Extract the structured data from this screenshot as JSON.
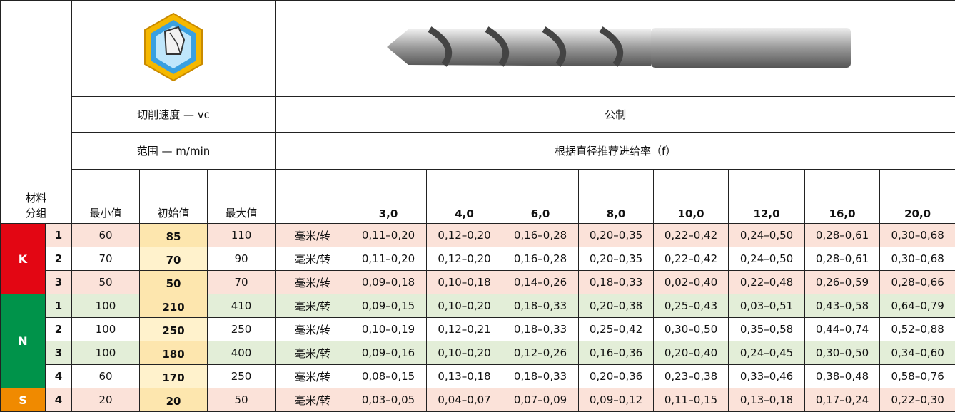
{
  "header": {
    "material_group": [
      "材料",
      "分组"
    ],
    "cutting_speed": "切削速度 — vc",
    "range": "范围 — m/min",
    "metric": "公制",
    "feed_note": "根据直径推荐进给率（f）",
    "min": "最小值",
    "start": "初始值",
    "max": "最大值",
    "diameters": [
      "3,0",
      "4,0",
      "6,0",
      "8,0",
      "10,0",
      "12,0",
      "16,0",
      "20,0"
    ]
  },
  "groups": [
    {
      "code": "K",
      "rows": [
        {
          "sub": "1",
          "min": 60,
          "start": 85,
          "max": 110,
          "unit": "毫米/转",
          "feeds": [
            "0,11–0,20",
            "0,12–0,20",
            "0,16–0,28",
            "0,20–0,35",
            "0,22–0,42",
            "0,24–0,50",
            "0,28–0,61",
            "0,30–0,68"
          ]
        },
        {
          "sub": "2",
          "min": 70,
          "start": 70,
          "max": 90,
          "unit": "毫米/转",
          "feeds": [
            "0,11–0,20",
            "0,12–0,20",
            "0,16–0,28",
            "0,20–0,35",
            "0,22–0,42",
            "0,24–0,50",
            "0,28–0,61",
            "0,30–0,68"
          ]
        },
        {
          "sub": "3",
          "min": 50,
          "start": 50,
          "max": 70,
          "unit": "毫米/转",
          "feeds": [
            "0,09–0,18",
            "0,10–0,18",
            "0,14–0,26",
            "0,18–0,33",
            "0,02–0,40",
            "0,22–0,48",
            "0,26–0,59",
            "0,28–0,66"
          ]
        }
      ]
    },
    {
      "code": "N",
      "rows": [
        {
          "sub": "1",
          "min": 100,
          "start": 210,
          "max": 410,
          "unit": "毫米/转",
          "feeds": [
            "0,09–0,15",
            "0,10–0,20",
            "0,18–0,33",
            "0,20–0,38",
            "0,25–0,43",
            "0,03–0,51",
            "0,43–0,58",
            "0,64–0,79"
          ]
        },
        {
          "sub": "2",
          "min": 100,
          "start": 250,
          "max": 250,
          "unit": "毫米/转",
          "feeds": [
            "0,10–0,19",
            "0,12–0,21",
            "0,18–0,33",
            "0,25–0,42",
            "0,30–0,50",
            "0,35–0,58",
            "0,44–0,74",
            "0,52–0,88"
          ]
        },
        {
          "sub": "3",
          "min": 100,
          "start": 180,
          "max": 400,
          "unit": "毫米/转",
          "feeds": [
            "0,09–0,16",
            "0,10–0,20",
            "0,12–0,26",
            "0,16–0,36",
            "0,20–0,40",
            "0,24–0,45",
            "0,30–0,50",
            "0,34–0,60"
          ]
        },
        {
          "sub": "4",
          "min": 60,
          "start": 170,
          "max": 250,
          "unit": "毫米/转",
          "feeds": [
            "0,08–0,15",
            "0,13–0,18",
            "0,18–0,33",
            "0,20–0,36",
            "0,23–0,38",
            "0,33–0,46",
            "0,38–0,48",
            "0,58–0,76"
          ]
        }
      ]
    },
    {
      "code": "S",
      "rows": [
        {
          "sub": "4",
          "min": 20,
          "start": 20,
          "max": 50,
          "unit": "毫米/转",
          "feeds": [
            "0,03–0,05",
            "0,04–0,07",
            "0,07–0,09",
            "0,09–0,12",
            "0,11–0,15",
            "0,13–0,18",
            "0,17–0,24",
            "0,22–0,30"
          ]
        }
      ]
    }
  ]
}
